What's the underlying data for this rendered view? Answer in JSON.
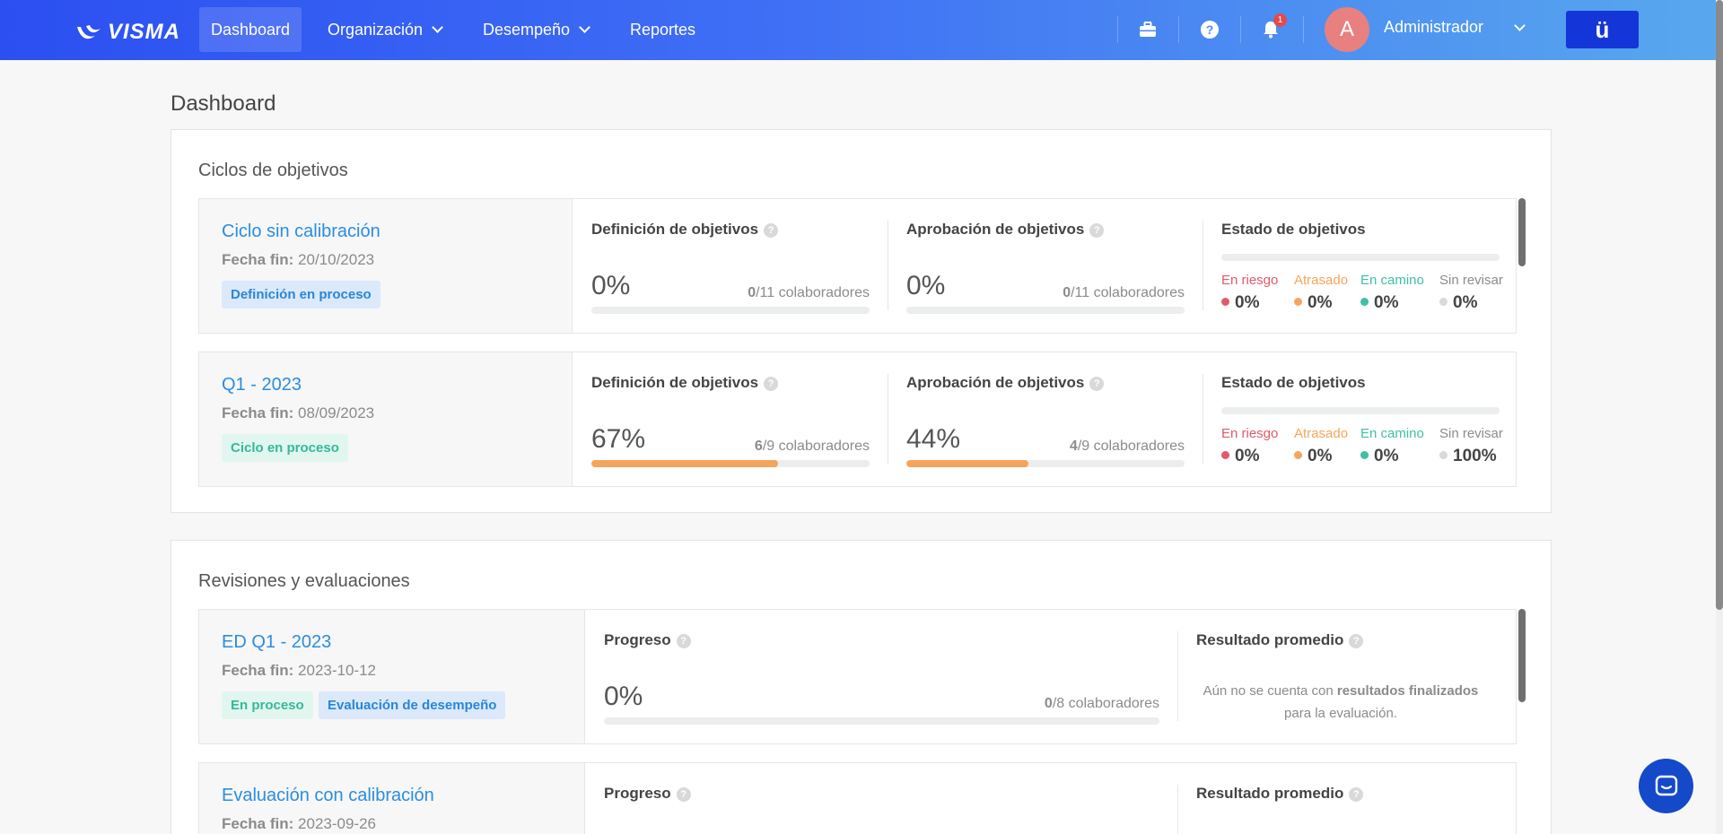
{
  "nav": {
    "brand": "VISMA",
    "items": [
      {
        "label": "Dashboard"
      },
      {
        "label": "Organización"
      },
      {
        "label": "Desempeño"
      },
      {
        "label": "Reportes"
      }
    ],
    "notifications_count": "1",
    "avatar_initial": "A",
    "user_name": "Administrador",
    "brand_button": "ü"
  },
  "page_title": "Dashboard",
  "goals": {
    "section_title": "Ciclos de objetivos",
    "cycles": [
      {
        "title": "Ciclo sin calibración",
        "date_label": "Fecha fin:",
        "date": "20/10/2023",
        "pill": "Definición en proceso",
        "definition": {
          "title": "Definición de objetivos",
          "percent": "0%",
          "progress": 0,
          "done": "0",
          "total": "/11 colaboradores"
        },
        "approval": {
          "title": "Aprobación de objetivos",
          "percent": "0%",
          "progress": 0,
          "done": "0",
          "total": "/11 colaboradores"
        },
        "status": {
          "title": "Estado de objetivos",
          "items": [
            {
              "label": "En riesgo",
              "value": "0%"
            },
            {
              "label": "Atrasado",
              "value": "0%"
            },
            {
              "label": "En camino",
              "value": "0%"
            },
            {
              "label": "Sin revisar",
              "value": "0%"
            }
          ]
        }
      },
      {
        "title": "Q1 - 2023",
        "date_label": "Fecha fin:",
        "date": "08/09/2023",
        "pill": "Ciclo en proceso",
        "definition": {
          "title": "Definición de objetivos",
          "percent": "67%",
          "progress": 0.67,
          "done": "6",
          "total": "/9 colaboradores"
        },
        "approval": {
          "title": "Aprobación de objetivos",
          "percent": "44%",
          "progress": 0.44,
          "done": "4",
          "total": "/9 colaboradores"
        },
        "status": {
          "title": "Estado de objetivos",
          "items": [
            {
              "label": "En riesgo",
              "value": "0%"
            },
            {
              "label": "Atrasado",
              "value": "0%"
            },
            {
              "label": "En camino",
              "value": "0%"
            },
            {
              "label": "Sin revisar",
              "value": "100%"
            }
          ]
        }
      }
    ]
  },
  "reviews": {
    "section_title": "Revisiones y evaluaciones",
    "items": [
      {
        "title": "ED Q1 - 2023",
        "date_label": "Fecha fin:",
        "date": "2023-10-12",
        "pills": [
          "En proceso",
          "Evaluación de desempeño"
        ],
        "progress_title": "Progreso",
        "percent": "0%",
        "progress": 0,
        "done": "0",
        "total": "/8 colaboradores",
        "result_title": "Resultado promedio",
        "no_result_a": "Aún no se cuenta con ",
        "no_result_b": "resultados finalizados",
        "no_result_c": " para la evaluación."
      },
      {
        "title": "Evaluación con calibración",
        "date_label": "Fecha fin:",
        "date": "2023-09-26",
        "progress_title": "Progreso",
        "result_title": "Resultado promedio"
      }
    ]
  },
  "colors": {
    "nav_start": "#2b4ff1",
    "nav_end": "#58a8ee",
    "link": "#2a8de0",
    "progress_fill": "#f5a55b",
    "en_riesgo": "#e05a6a",
    "atrasado": "#f5a55b",
    "en_camino": "#3fbfa4",
    "sin_revisar": "#d9d9d9"
  },
  "icons": [
    "briefcase-icon",
    "help-icon",
    "bell-icon",
    "chevron-down-icon",
    "chat-icon"
  ]
}
